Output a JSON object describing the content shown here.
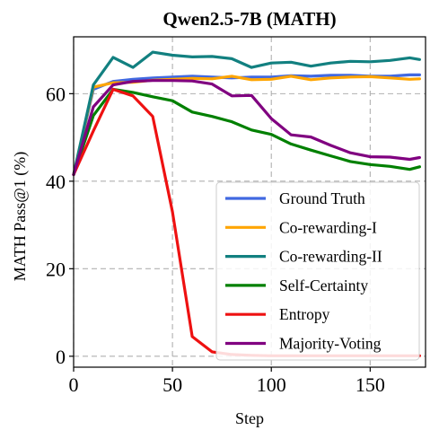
{
  "chart_data": {
    "type": "line",
    "title": "Qwen2.5-7B (MATH)",
    "xlabel": "Step",
    "ylabel": "MATH Pass@1 (%)",
    "xlim": [
      0,
      178
    ],
    "ylim": [
      -2.5,
      73
    ],
    "xticks": [
      0,
      50,
      100,
      150
    ],
    "yticks": [
      0,
      20,
      40,
      60
    ],
    "grid": true,
    "legend_position": "lower-right",
    "x": [
      0,
      10,
      20,
      30,
      40,
      50,
      60,
      70,
      80,
      90,
      100,
      110,
      120,
      130,
      140,
      150,
      160,
      170,
      175
    ],
    "series": [
      {
        "name": "Ground Truth",
        "color": "#4169E1",
        "values": [
          41.5,
          61.0,
          62.8,
          63.3,
          63.6,
          63.8,
          64.0,
          63.8,
          63.6,
          63.8,
          63.8,
          64.1,
          64.0,
          64.2,
          64.2,
          64.0,
          64.0,
          64.3,
          64.3
        ]
      },
      {
        "name": "Co-rewarding-I",
        "color": "#FFA500",
        "values": [
          41.5,
          61.5,
          62.5,
          62.6,
          63.1,
          63.3,
          63.5,
          63.4,
          64.0,
          63.2,
          63.3,
          64.0,
          63.2,
          63.6,
          63.8,
          63.9,
          63.6,
          63.3,
          63.4
        ]
      },
      {
        "name": "Co-rewarding-II",
        "color": "#128080",
        "values": [
          41.5,
          62.0,
          68.3,
          66.0,
          69.5,
          68.8,
          68.4,
          68.5,
          68.0,
          66.0,
          67.0,
          67.2,
          66.3,
          67.0,
          67.4,
          67.3,
          67.6,
          68.2,
          67.8
        ]
      },
      {
        "name": "Self-Certainty",
        "color": "#008000",
        "values": [
          41.5,
          55.0,
          61.0,
          60.3,
          59.3,
          58.4,
          55.8,
          54.8,
          53.6,
          51.7,
          50.7,
          48.5,
          47.1,
          45.8,
          44.5,
          43.8,
          43.4,
          42.7,
          43.3
        ]
      },
      {
        "name": "Entropy",
        "color": "#EE1111",
        "values": [
          41.5,
          51.5,
          61.0,
          59.5,
          54.8,
          33.0,
          4.5,
          1.0,
          0.4,
          0.2,
          0.1,
          0.1,
          0.1,
          0.1,
          0.1,
          0.1,
          0.1,
          0.1,
          0.1
        ]
      },
      {
        "name": "Majority-Voting",
        "color": "#800080",
        "values": [
          41.5,
          57.0,
          62.0,
          62.8,
          63.0,
          63.0,
          62.9,
          62.2,
          59.5,
          59.6,
          54.3,
          50.6,
          50.1,
          48.2,
          46.5,
          45.6,
          45.5,
          45.0,
          45.4
        ]
      }
    ]
  }
}
